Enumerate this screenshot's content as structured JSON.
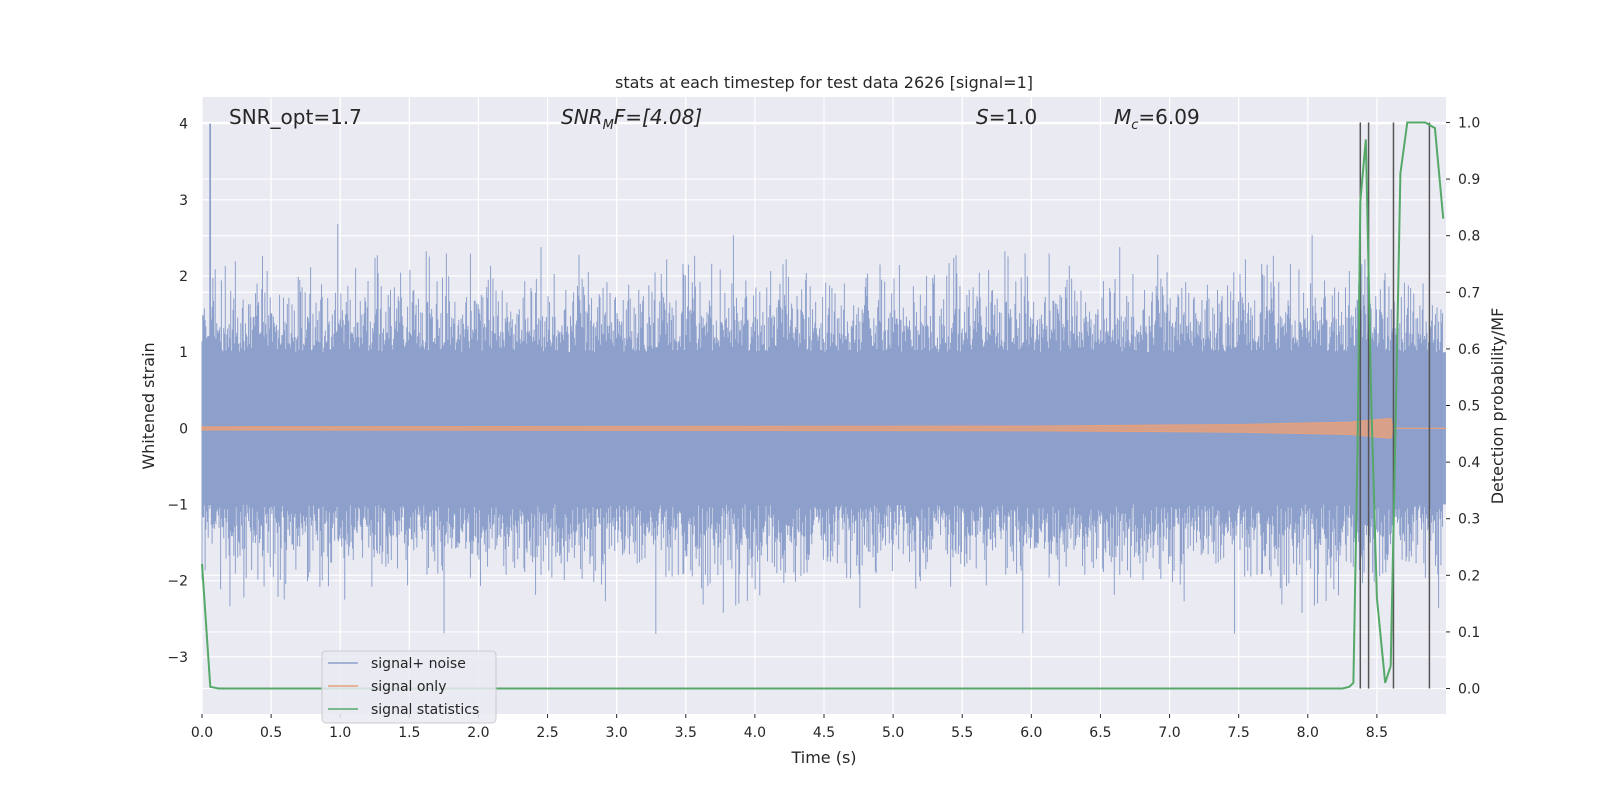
{
  "chart_data": {
    "type": "line",
    "title": "stats at each timestep for test data 2626 [signal=1]",
    "xlabel": "Time (s)",
    "ylabel_left": "Whitened strain",
    "ylabel_right": "Detection probability/MF",
    "xlim": [
      0.0,
      9.0
    ],
    "ylim_left": [
      -3.75,
      4.35
    ],
    "ylim_right": [
      -0.045,
      1.045
    ],
    "x_ticks": [
      "0.0",
      "0.5",
      "1.0",
      "1.5",
      "2.0",
      "2.5",
      "3.0",
      "3.5",
      "4.0",
      "4.5",
      "5.0",
      "5.5",
      "6.0",
      "6.5",
      "7.0",
      "7.5",
      "8.0",
      "8.5"
    ],
    "y_ticks_left": [
      "−3",
      "−2",
      "−1",
      "0",
      "1",
      "2",
      "3",
      "4"
    ],
    "y_ticks_right": [
      "0.0",
      "0.1",
      "0.2",
      "0.3",
      "0.4",
      "0.5",
      "0.6",
      "0.7",
      "0.8",
      "0.9",
      "1.0"
    ],
    "grid": true,
    "legend_position": "lower-left",
    "annotations": {
      "snr_opt": "SNR_opt=1.7",
      "snr_mf_prefix": "SNR",
      "snr_mf_sub": "M",
      "snr_mf_suffix": "F=[4.08]",
      "s_label": "S",
      "s_value": "=1.0",
      "mc_label": "M",
      "mc_sub": "c",
      "mc_value": "=6.09"
    },
    "series": [
      {
        "name": "signal+ noise",
        "color": "#8da0cb",
        "axis": "left",
        "description_values": "noise envelope mostly within ±2, peaks up to 4.0 near t=0.06"
      },
      {
        "name": "signal only",
        "color": "#e5a07d",
        "axis": "left",
        "x": [
          0.0,
          6.0,
          7.5,
          8.3,
          8.6,
          8.62,
          9.0
        ],
        "y_amplitude": [
          0.02,
          0.03,
          0.05,
          0.08,
          0.13,
          0.0,
          0.0
        ]
      },
      {
        "name": "signal statistics",
        "color": "#55a868",
        "axis": "right",
        "x": [
          0.0,
          0.06,
          0.12,
          0.5,
          1.0,
          2.0,
          3.0,
          4.0,
          5.0,
          6.0,
          7.0,
          8.0,
          8.25,
          8.3,
          8.33,
          8.36,
          8.38,
          8.42,
          8.46,
          8.5,
          8.56,
          8.6,
          8.63,
          8.67,
          8.72,
          8.78,
          8.85,
          8.92,
          8.98
        ],
        "y": [
          0.22,
          0.003,
          0.0,
          0.0,
          0.0,
          0.0,
          0.0,
          0.0,
          0.0,
          0.0,
          0.0,
          0.0,
          0.0,
          0.003,
          0.01,
          0.42,
          0.86,
          0.97,
          0.5,
          0.16,
          0.01,
          0.04,
          0.4,
          0.91,
          1.0,
          1.0,
          1.0,
          0.99,
          0.83
        ]
      }
    ],
    "vertical_lines_x": [
      8.38,
      8.44,
      8.62,
      8.88
    ],
    "vertical_line_color": "#555555",
    "colors": {
      "plot_bg": "#eaeaf2",
      "grid": "#ffffff",
      "text": "#262626"
    }
  }
}
